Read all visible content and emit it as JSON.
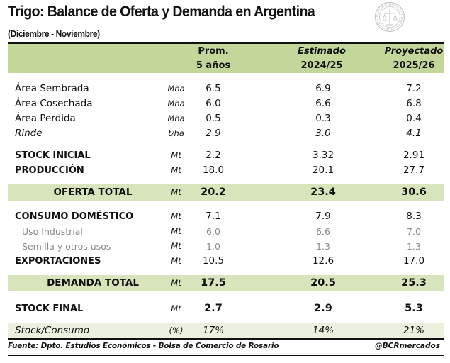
{
  "title": "Trigo: Balance de Oferta y Demanda en Argentina",
  "subtitle": "(Diciembre - Noviembre)",
  "logo": {
    "icon": "bcr-seal-icon",
    "text": "BOLSA DE COMERCIO DE ROSARIO"
  },
  "columns": [
    {
      "line1": "Prom.",
      "line2": "5 años",
      "italic": false
    },
    {
      "line1": "Estimado",
      "line2": "2024/25",
      "italic": true
    },
    {
      "line1": "Proyectado",
      "line2": "2025/26",
      "italic": false
    }
  ],
  "rows": [
    {
      "label": "Área Sembrada",
      "unit": "Mha",
      "values": [
        "6.5",
        "6.9",
        "7.2"
      ]
    },
    {
      "label": "Área Cosechada",
      "unit": "Mha",
      "values": [
        "6.0",
        "6.6",
        "6.8"
      ]
    },
    {
      "label": "Área Perdida",
      "unit": "Mha",
      "values": [
        "0.5",
        "0.3",
        "0.4"
      ]
    },
    {
      "label": "Rinde",
      "unit": "t/ha",
      "values": [
        "2.9",
        "3.0",
        "4.1"
      ]
    },
    {
      "label": "STOCK INICIAL",
      "unit": "Mt",
      "values": [
        "2.2",
        "3.32",
        "2.91"
      ]
    },
    {
      "label": "PRODUCCIÓN",
      "unit": "Mt",
      "values": [
        "18.0",
        "20.1",
        "27.7"
      ]
    },
    {
      "label": "OFERTA TOTAL",
      "unit": "Mt",
      "values": [
        "20.2",
        "23.4",
        "30.6"
      ]
    },
    {
      "label": "CONSUMO DOMÉSTICO",
      "unit": "Mt",
      "values": [
        "7.1",
        "7.9",
        "8.3"
      ]
    },
    {
      "label": "Uso Industrial",
      "unit": "Mt",
      "values": [
        "6.0",
        "6.6",
        "7.0"
      ]
    },
    {
      "label": "Semilla y otros usos",
      "unit": "Mt",
      "values": [
        "1.0",
        "1.3",
        "1.3"
      ]
    },
    {
      "label": "EXPORTACIONES",
      "unit": "Mt",
      "values": [
        "10.5",
        "12.6",
        "17.0"
      ]
    },
    {
      "label": "DEMANDA TOTAL",
      "unit": "Mt",
      "values": [
        "17.5",
        "20.5",
        "25.3"
      ]
    },
    {
      "label": "STOCK FINAL",
      "unit": "Mt",
      "values": [
        "2.7",
        "2.9",
        "5.3"
      ]
    },
    {
      "label": "Stock/Consumo",
      "unit": "(%)",
      "values": [
        "17%",
        "14%",
        "21%"
      ]
    }
  ],
  "footer": {
    "source": "Fuente: Dpto. Estudios Económicos - Bolsa de Comercio de Rosario",
    "handle": "@BCRmercados"
  },
  "colors": {
    "header_green": "#c4d79b",
    "band_green": "#d8e4bc",
    "light_green": "#ebf1de",
    "grey_text": "#8a8a8a"
  }
}
